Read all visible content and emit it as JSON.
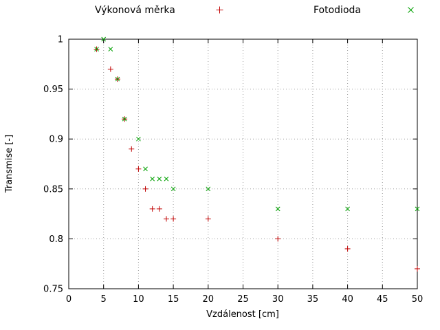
{
  "chart_data": {
    "type": "scatter",
    "title": "",
    "xlabel": "Vzdálenost [cm]",
    "ylabel": "Transmise [-]",
    "xlim": [
      0,
      50
    ],
    "ylim": [
      0.75,
      1.0
    ],
    "xticks": [
      0,
      5,
      10,
      15,
      20,
      25,
      30,
      35,
      40,
      45,
      50
    ],
    "xtick_labels": [
      "0",
      "5",
      "10",
      "15",
      "20",
      "25",
      "30",
      "35",
      "40",
      "45",
      "50"
    ],
    "yticks": [
      0.75,
      0.8,
      0.85,
      0.9,
      0.95,
      1.0
    ],
    "ytick_labels": [
      "0.75",
      "0.8",
      "0.85",
      "0.9",
      "0.95",
      "1"
    ],
    "grid": true,
    "grid_style": "dotted-gray",
    "legend_position": "top-outside-horizontal",
    "series": [
      {
        "name": "Výkonová měrka",
        "marker": "plus",
        "color": "#c00000",
        "points": [
          [
            4,
            0.99
          ],
          [
            6,
            0.97
          ],
          [
            7,
            0.96
          ],
          [
            8,
            0.92
          ],
          [
            9,
            0.89
          ],
          [
            10,
            0.87
          ],
          [
            11,
            0.85
          ],
          [
            12,
            0.83
          ],
          [
            13,
            0.83
          ],
          [
            14,
            0.82
          ],
          [
            15,
            0.82
          ],
          [
            20,
            0.82
          ],
          [
            30,
            0.8
          ],
          [
            40,
            0.79
          ],
          [
            50,
            0.77
          ]
        ]
      },
      {
        "name": "Fotodioda",
        "marker": "cross",
        "color": "#00a000",
        "points": [
          [
            4,
            0.99
          ],
          [
            5,
            1.0
          ],
          [
            6,
            0.99
          ],
          [
            7,
            0.96
          ],
          [
            8,
            0.92
          ],
          [
            10,
            0.9
          ],
          [
            11,
            0.87
          ],
          [
            12,
            0.86
          ],
          [
            13,
            0.86
          ],
          [
            14,
            0.86
          ],
          [
            15,
            0.85
          ],
          [
            20,
            0.85
          ],
          [
            30,
            0.83
          ],
          [
            40,
            0.83
          ],
          [
            50,
            0.83
          ]
        ]
      }
    ]
  }
}
